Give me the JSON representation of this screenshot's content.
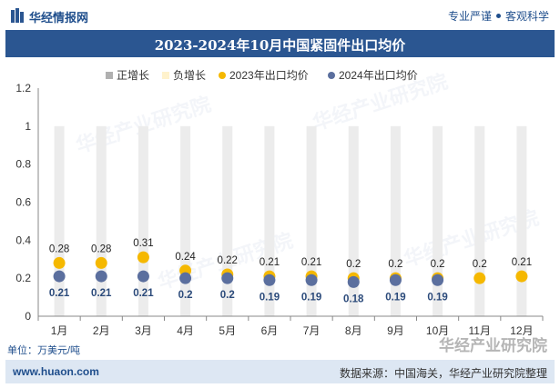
{
  "header": {
    "brand": "华经情报网",
    "slogan_left": "专业严谨",
    "slogan_right": "客观科学"
  },
  "unit_label": "单位：万美元/吨",
  "footer": {
    "url": "www.huaon.com",
    "source": "数据来源：中国海关，华经产业研究院整理"
  },
  "watermark": {
    "text": "华经产业研究院",
    "corner_text": "华经产业研究院"
  },
  "colors": {
    "header_blue": "#2b5691",
    "series_2023": "#f5b800",
    "series_2024": "#5b6f9e",
    "pos_legend": "#b0b0b0",
    "neg_legend": "#fff2cc",
    "range_bar": "#ececec"
  },
  "chart_data": {
    "type": "line",
    "title": "2023-2024年10月中国紧固件出口均价",
    "categories": [
      "1月",
      "2月",
      "3月",
      "4月",
      "5月",
      "6月",
      "7月",
      "8月",
      "9月",
      "10月",
      "11月",
      "12月"
    ],
    "legend": [
      "正增长",
      "负增长",
      "2023年出口均价",
      "2024年出口均价"
    ],
    "legend_position": "top",
    "ylim": [
      0,
      1.2
    ],
    "yticks": [
      0,
      0.2,
      0.4,
      0.6,
      0.8,
      1,
      1.2
    ],
    "ytick_labels": [
      "0",
      "0.2",
      "0.4",
      "0.6",
      "0.8",
      "1",
      "1.2"
    ],
    "series": [
      {
        "name": "2023年出口均价",
        "values": [
          0.28,
          0.28,
          0.31,
          0.24,
          0.22,
          0.21,
          0.21,
          0.2,
          0.2,
          0.2,
          0.2,
          0.21
        ],
        "labels": [
          "0.28",
          "0.28",
          "0.31",
          "0.24",
          "0.22",
          "0.21",
          "0.21",
          "0.2",
          "0.2",
          "0.2",
          "0.2",
          "0.21"
        ]
      },
      {
        "name": "2024年出口均价",
        "values": [
          0.21,
          0.21,
          0.21,
          0.2,
          0.2,
          0.19,
          0.19,
          0.18,
          0.19,
          0.19,
          null,
          null
        ],
        "labels": [
          "0.21",
          "0.21",
          "0.21",
          "0.2",
          "0.2",
          "0.19",
          "0.19",
          "0.18",
          "0.19",
          "0.19",
          "",
          ""
        ]
      }
    ],
    "grid": false
  }
}
